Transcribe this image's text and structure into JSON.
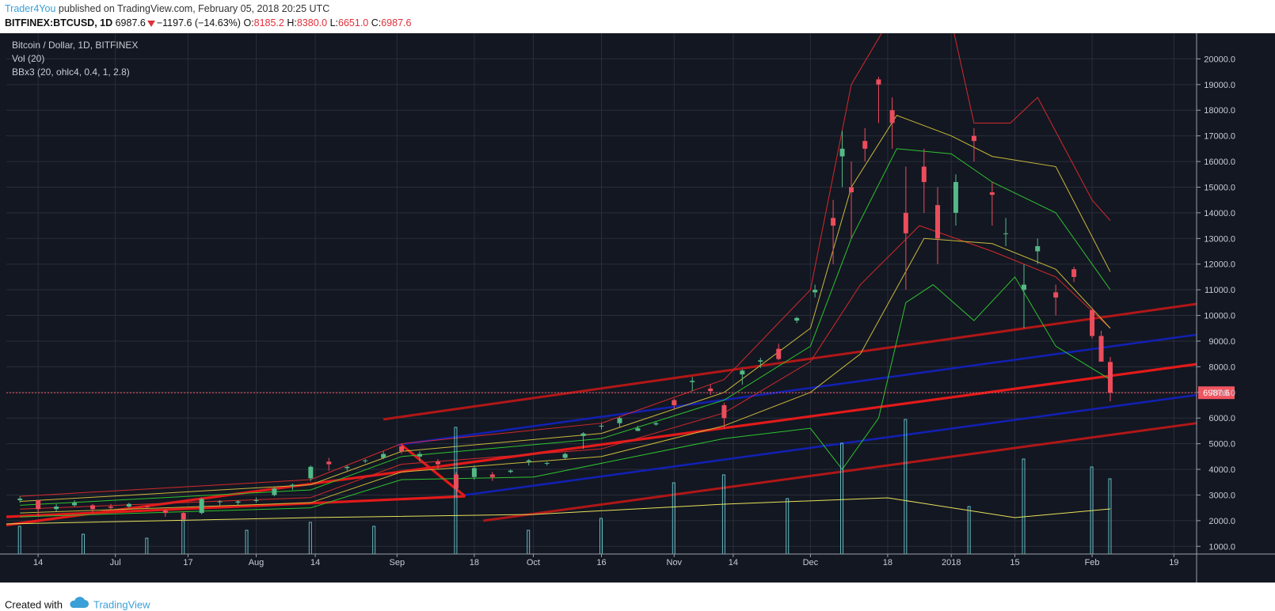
{
  "header": {
    "author": "Trader4You",
    "published": "published on TradingView.com, February 05, 2018 20:25 UTC",
    "symbol": "BITFINEX:BTCUSD, 1D",
    "last": "6987.6",
    "change": "−1197.6 (−14.63%)",
    "open_label": "O:",
    "open": "8185.2",
    "high_label": "H:",
    "high": "8380.0",
    "low_label": "L:",
    "low": "6651.0",
    "close_label": "C:",
    "close": "6987.6"
  },
  "legend": {
    "title": "Bitcoin / Dollar, 1D, BITFINEX",
    "vol": "Vol (20)",
    "bb": "BBx3 (20, ohlc4, 0.4, 1, 2.8)"
  },
  "footer": {
    "created": "Created with",
    "brand": "TradingView"
  },
  "colors": {
    "background": "#131722",
    "up": "#53b987",
    "down": "#eb4d5c",
    "grid": "#2a2e39",
    "volume": "#6dcfd6",
    "vol_ma": "#e8e25a",
    "bb_red": "#d42a2a",
    "bb_yellow": "#c9b93a",
    "bb_green": "#2ec32e",
    "channel_red": "#e31a1a",
    "channel_darkred": "#b01717",
    "channel_blue": "#1220b0",
    "price_line": "#f05560"
  },
  "chart_data": {
    "type": "candlestick",
    "x_ticks": [
      {
        "date": "2017-06-14",
        "label": "14"
      },
      {
        "date": "2017-07-01",
        "label": "Jul"
      },
      {
        "date": "2017-07-17",
        "label": "17"
      },
      {
        "date": "2017-08-01",
        "label": "Aug"
      },
      {
        "date": "2017-08-14",
        "label": "14"
      },
      {
        "date": "2017-09-01",
        "label": "Sep"
      },
      {
        "date": "2017-09-18",
        "label": "18"
      },
      {
        "date": "2017-10-01",
        "label": "Oct"
      },
      {
        "date": "2017-10-16",
        "label": "16"
      },
      {
        "date": "2017-11-01",
        "label": "Nov"
      },
      {
        "date": "2017-11-14",
        "label": "14"
      },
      {
        "date": "2017-12-01",
        "label": "Dec"
      },
      {
        "date": "2017-12-18",
        "label": "18"
      },
      {
        "date": "2018-01-01",
        "label": "2018"
      },
      {
        "date": "2018-01-15",
        "label": "15"
      },
      {
        "date": "2018-02-01",
        "label": "Feb"
      },
      {
        "date": "2018-02-19",
        "label": "19"
      }
    ],
    "y_ticks": [
      {
        "value": 1000,
        "label": "1000.0"
      },
      {
        "value": 2000,
        "label": "2000.0"
      },
      {
        "value": 3000,
        "label": "3000.0"
      },
      {
        "value": 4000,
        "label": "4000.0"
      },
      {
        "value": 5000,
        "label": "5000.0"
      },
      {
        "value": 6000,
        "label": "6000.0"
      },
      {
        "value": 7000,
        "label": "7000.0"
      },
      {
        "value": 8000,
        "label": "8000.0"
      },
      {
        "value": 9000,
        "label": "9000.0"
      },
      {
        "value": 10000,
        "label": "10000.0"
      },
      {
        "value": 11000,
        "label": "11000.0"
      },
      {
        "value": 12000,
        "label": "12000.0"
      },
      {
        "value": 13000,
        "label": "13000.0"
      },
      {
        "value": 14000,
        "label": "14000.0"
      },
      {
        "value": 15000,
        "label": "15000.0"
      },
      {
        "value": 16000,
        "label": "16000.0"
      },
      {
        "value": 17000,
        "label": "17000.0"
      },
      {
        "value": 18000,
        "label": "18000.0"
      },
      {
        "value": 19000,
        "label": "19000.0"
      },
      {
        "value": 20000,
        "label": "20000.0"
      }
    ],
    "y_range": [
      700,
      21000
    ],
    "x_range": [
      "2017-06-07",
      "2018-02-24"
    ],
    "last_price": {
      "value": 6987.6,
      "label": "6987.6"
    },
    "candles": [
      [
        "2017-06-10",
        2800,
        2950,
        2700,
        2860
      ],
      [
        "2017-06-14",
        2800,
        2800,
        2150,
        2450
      ],
      [
        "2017-06-18",
        2450,
        2650,
        2350,
        2550
      ],
      [
        "2017-06-22",
        2600,
        2800,
        2550,
        2700
      ],
      [
        "2017-06-26",
        2600,
        2650,
        2300,
        2450
      ],
      [
        "2017-06-30",
        2550,
        2650,
        2450,
        2500
      ],
      [
        "2017-07-04",
        2550,
        2700,
        2500,
        2650
      ],
      [
        "2017-07-08",
        2550,
        2600,
        2450,
        2520
      ],
      [
        "2017-07-12",
        2400,
        2450,
        2150,
        2300
      ],
      [
        "2017-07-16",
        2300,
        2350,
        1950,
        2050
      ],
      [
        "2017-07-20",
        2300,
        2900,
        2250,
        2850
      ],
      [
        "2017-07-24",
        2750,
        2800,
        2600,
        2750
      ],
      [
        "2017-07-28",
        2700,
        2800,
        2600,
        2750
      ],
      [
        "2017-08-01",
        2800,
        2900,
        2700,
        2800
      ],
      [
        "2017-08-05",
        3000,
        3300,
        2950,
        3250
      ],
      [
        "2017-08-09",
        3350,
        3450,
        3200,
        3400
      ],
      [
        "2017-08-13",
        3650,
        4150,
        3550,
        4100
      ],
      [
        "2017-08-17",
        4300,
        4450,
        3950,
        4200
      ],
      [
        "2017-08-21",
        4050,
        4150,
        3950,
        4100
      ],
      [
        "2017-08-25",
        4350,
        4400,
        4250,
        4350
      ],
      [
        "2017-08-29",
        4450,
        4700,
        4400,
        4600
      ],
      [
        "2017-09-02",
        4900,
        5000,
        4600,
        4700
      ],
      [
        "2017-09-06",
        4500,
        4700,
        4300,
        4600
      ],
      [
        "2017-09-10",
        4300,
        4400,
        4000,
        4200
      ],
      [
        "2017-09-14",
        3800,
        3900,
        2950,
        3250
      ],
      [
        "2017-09-18",
        3700,
        4150,
        3600,
        4050
      ],
      [
        "2017-09-22",
        3800,
        3900,
        3550,
        3700
      ],
      [
        "2017-09-26",
        3900,
        4000,
        3850,
        3950
      ],
      [
        "2017-09-30",
        4300,
        4400,
        4150,
        4350
      ],
      [
        "2017-10-04",
        4250,
        4300,
        4150,
        4250
      ],
      [
        "2017-10-08",
        4450,
        4650,
        4400,
        4600
      ],
      [
        "2017-10-12",
        5300,
        5450,
        4800,
        5400
      ],
      [
        "2017-10-16",
        5700,
        5800,
        5550,
        5700
      ],
      [
        "2017-10-20",
        5800,
        6050,
        5650,
        6000
      ],
      [
        "2017-10-24",
        5500,
        5700,
        5500,
        5600
      ],
      [
        "2017-10-28",
        5750,
        5850,
        5700,
        5800
      ],
      [
        "2017-11-01",
        6700,
        6750,
        6350,
        6500
      ],
      [
        "2017-11-05",
        7400,
        7600,
        7050,
        7450
      ],
      [
        "2017-11-09",
        7150,
        7300,
        6900,
        7050
      ],
      [
        "2017-11-12",
        6500,
        6600,
        5600,
        6000
      ],
      [
        "2017-11-16",
        7700,
        7900,
        7300,
        7850
      ],
      [
        "2017-11-20",
        8200,
        8350,
        7950,
        8250
      ],
      [
        "2017-11-24",
        8700,
        8900,
        8250,
        8300
      ],
      [
        "2017-11-28",
        9800,
        9950,
        9700,
        9900
      ],
      [
        "2017-12-02",
        10900,
        11200,
        10700,
        11000
      ],
      [
        "2017-12-06",
        13800,
        14500,
        12000,
        13500
      ],
      [
        "2017-12-08",
        16200,
        17200,
        15000,
        16500
      ],
      [
        "2017-12-10",
        15000,
        16000,
        13000,
        14800
      ],
      [
        "2017-12-13",
        16800,
        17300,
        16000,
        16500
      ],
      [
        "2017-12-16",
        19200,
        19300,
        17500,
        19000
      ],
      [
        "2017-12-19",
        18000,
        18500,
        16500,
        17500
      ],
      [
        "2017-12-22",
        14000,
        15800,
        11000,
        13200
      ],
      [
        "2017-12-26",
        15800,
        16500,
        14000,
        15200
      ],
      [
        "2017-12-29",
        14300,
        15000,
        12000,
        13000
      ],
      [
        "2018-01-02",
        14000,
        15500,
        13500,
        15200
      ],
      [
        "2018-01-06",
        17000,
        17300,
        16000,
        16800
      ],
      [
        "2018-01-10",
        14800,
        15200,
        13500,
        14700
      ],
      [
        "2018-01-13",
        13200,
        13800,
        12700,
        13200
      ],
      [
        "2018-01-17",
        11000,
        12000,
        9500,
        11200
      ],
      [
        "2018-01-20",
        12500,
        13000,
        12000,
        12700
      ],
      [
        "2018-01-24",
        10900,
        11200,
        10000,
        10700
      ],
      [
        "2018-01-28",
        11800,
        11900,
        11300,
        11500
      ],
      [
        "2018-02-01",
        10200,
        10300,
        9100,
        9200
      ],
      [
        "2018-02-03",
        9200,
        9400,
        8200,
        8200
      ],
      [
        "2018-02-05",
        8185.2,
        8380.0,
        6651.0,
        6987.6
      ]
    ],
    "volume": {
      "unit_note": "scaled volume bars on overlay",
      "dates": [
        "2017-06-10",
        "2017-06-24",
        "2017-07-08",
        "2017-07-16",
        "2017-07-30",
        "2017-08-13",
        "2017-08-27",
        "2017-09-14",
        "2017-09-30",
        "2017-10-16",
        "2017-11-01",
        "2017-11-12",
        "2017-11-26",
        "2017-12-08",
        "2017-12-22",
        "2018-01-05",
        "2018-01-17",
        "2018-02-01",
        "2018-02-05"
      ],
      "values": [
        35,
        25,
        20,
        45,
        30,
        40,
        35,
        160,
        30,
        45,
        90,
        100,
        70,
        140,
        170,
        60,
        120,
        110,
        95
      ]
    }
  }
}
